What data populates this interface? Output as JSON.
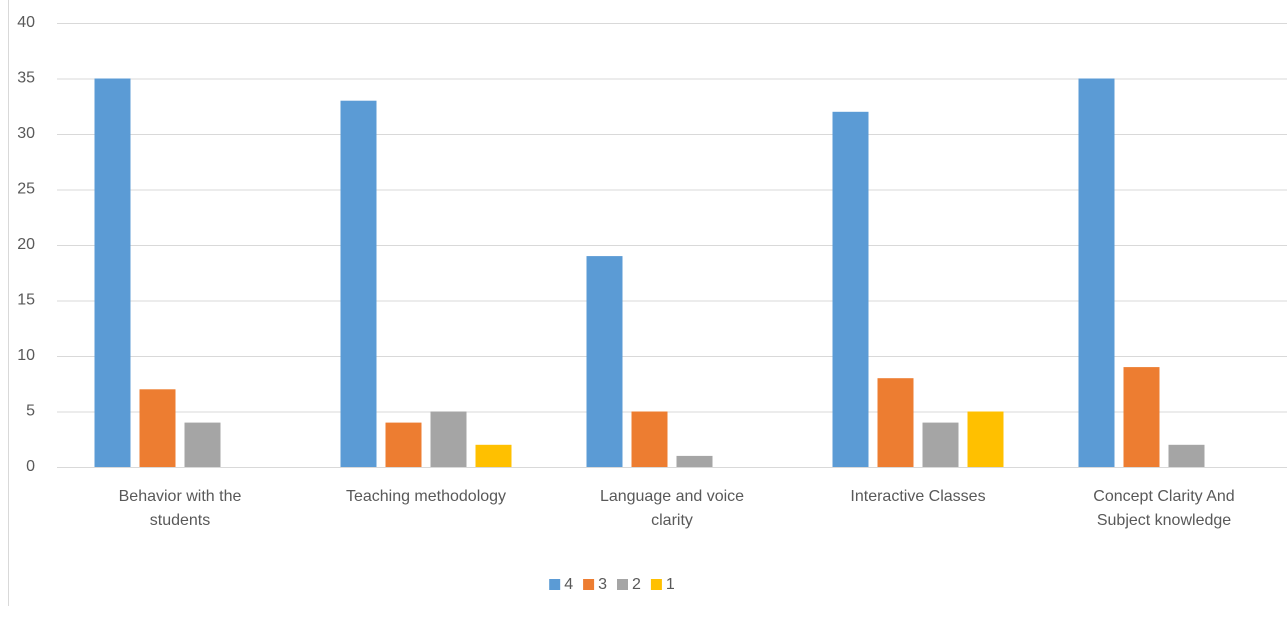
{
  "chart_data": {
    "type": "bar",
    "categories": [
      "Behavior with the students",
      "Teaching methodology",
      "Language and voice clarity",
      "Interactive Classes",
      "Concept Clarity And Subject knowledge"
    ],
    "series": [
      {
        "name": "4",
        "color": "#5b9bd5",
        "values": [
          35,
          33,
          19,
          32,
          35
        ]
      },
      {
        "name": "3",
        "color": "#ed7d31",
        "values": [
          7,
          4,
          5,
          8,
          9
        ]
      },
      {
        "name": "2",
        "color": "#a5a5a5",
        "values": [
          4,
          5,
          1,
          4,
          2
        ]
      },
      {
        "name": "1",
        "color": "#ffc000",
        "values": [
          0,
          2,
          0,
          5,
          0
        ]
      }
    ],
    "ylim": [
      0,
      40
    ],
    "yticks": [
      0,
      5,
      10,
      15,
      20,
      25,
      30,
      35,
      40
    ],
    "grid": true,
    "legend": "bottom"
  }
}
